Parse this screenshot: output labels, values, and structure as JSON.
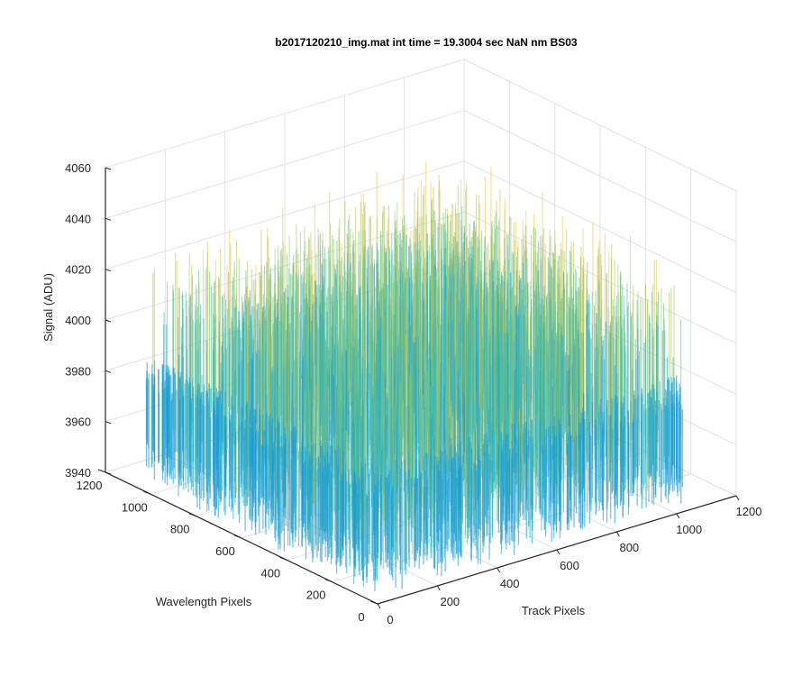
{
  "chart_data": {
    "type": "surface",
    "title": "b2017120210_img.mat int time = 19.3004 sec  NaN nm BS03",
    "xlabel": "Track Pixels",
    "ylabel": "Wavelength Pixels",
    "zlabel": "Signal (ADU)",
    "xlim": [
      0,
      1200
    ],
    "ylim": [
      0,
      1200
    ],
    "zlim": [
      3940,
      4060
    ],
    "xticks": [
      "0",
      "200",
      "400",
      "600",
      "800",
      "1000",
      "1200"
    ],
    "yticks": [
      "0",
      "200",
      "400",
      "600",
      "800",
      "1000",
      "1200"
    ],
    "zticks": [
      "3940",
      "3960",
      "3980",
      "4000",
      "4020",
      "4040",
      "4060"
    ],
    "x_range": [
      0,
      1024
    ],
    "y_range": [
      0,
      1024
    ],
    "signal_mean": 3980,
    "signal_spread": [
      3948,
      4040
    ],
    "grid": true,
    "colormap": "parula",
    "colors": [
      "#0072bd",
      "#1b9ad6",
      "#25b1c5",
      "#58bd96",
      "#a9c45b",
      "#e9c53e"
    ]
  }
}
